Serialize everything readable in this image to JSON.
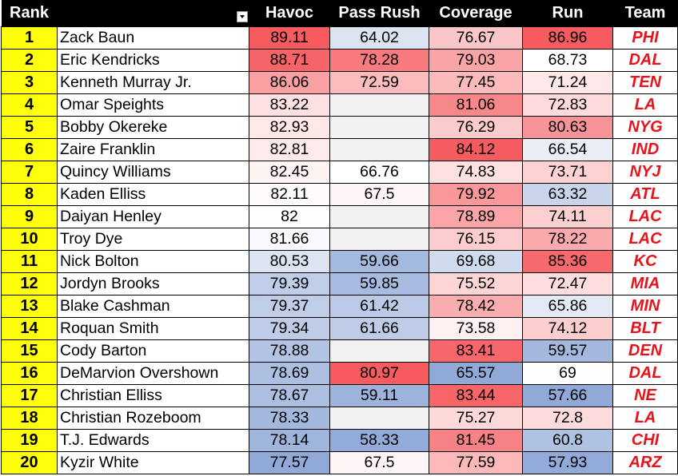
{
  "headers": {
    "rank": "Rank",
    "name": "",
    "havoc": "Havoc",
    "pass_rush": "Pass Rush",
    "coverage": "Coverage",
    "run": "Run",
    "team": "Team"
  },
  "rows": [
    {
      "rank": "1",
      "name": "Zack Baun",
      "havoc": "89.11",
      "pass_rush": "64.02",
      "coverage": "76.67",
      "run": "86.96",
      "team": "PHI"
    },
    {
      "rank": "2",
      "name": "Eric Kendricks",
      "havoc": "88.71",
      "pass_rush": "78.28",
      "coverage": "79.03",
      "run": "68.73",
      "team": "DAL"
    },
    {
      "rank": "3",
      "name": "Kenneth Murray Jr.",
      "havoc": "86.06",
      "pass_rush": "72.59",
      "coverage": "77.45",
      "run": "71.24",
      "team": "TEN"
    },
    {
      "rank": "4",
      "name": "Omar Speights",
      "havoc": "83.22",
      "pass_rush": "",
      "coverage": "81.06",
      "run": "72.83",
      "team": "LA"
    },
    {
      "rank": "5",
      "name": "Bobby Okereke",
      "havoc": "82.93",
      "pass_rush": "",
      "coverage": "76.29",
      "run": "80.63",
      "team": "NYG"
    },
    {
      "rank": "6",
      "name": "Zaire Franklin",
      "havoc": "82.81",
      "pass_rush": "",
      "coverage": "84.12",
      "run": "66.54",
      "team": "IND"
    },
    {
      "rank": "7",
      "name": "Quincy Williams",
      "havoc": "82.45",
      "pass_rush": "66.76",
      "coverage": "74.83",
      "run": "73.71",
      "team": "NYJ"
    },
    {
      "rank": "8",
      "name": "Kaden Elliss",
      "havoc": "82.11",
      "pass_rush": "67.5",
      "coverage": "79.92",
      "run": "63.32",
      "team": "ATL"
    },
    {
      "rank": "9",
      "name": "Daiyan Henley",
      "havoc": "82",
      "pass_rush": "",
      "coverage": "78.89",
      "run": "74.11",
      "team": "LAC"
    },
    {
      "rank": "10",
      "name": "Troy Dye",
      "havoc": "81.66",
      "pass_rush": "",
      "coverage": "76.15",
      "run": "78.22",
      "team": "LAC"
    },
    {
      "rank": "11",
      "name": "Nick Bolton",
      "havoc": "80.53",
      "pass_rush": "59.66",
      "coverage": "69.68",
      "run": "85.36",
      "team": "KC"
    },
    {
      "rank": "12",
      "name": "Jordyn Brooks",
      "havoc": "79.39",
      "pass_rush": "59.85",
      "coverage": "75.52",
      "run": "72.47",
      "team": "MIA"
    },
    {
      "rank": "13",
      "name": "Blake Cashman",
      "havoc": "79.37",
      "pass_rush": "61.42",
      "coverage": "78.42",
      "run": "65.86",
      "team": "MIN"
    },
    {
      "rank": "14",
      "name": "Roquan Smith",
      "havoc": "79.34",
      "pass_rush": "61.66",
      "coverage": "73.58",
      "run": "74.12",
      "team": "BLT"
    },
    {
      "rank": "15",
      "name": "Cody Barton",
      "havoc": "78.88",
      "pass_rush": "",
      "coverage": "83.41",
      "run": "59.57",
      "team": "DEN"
    },
    {
      "rank": "16",
      "name": "DeMarvion Overshown",
      "havoc": "78.69",
      "pass_rush": "80.97",
      "coverage": "65.57",
      "run": "69",
      "team": "DAL"
    },
    {
      "rank": "17",
      "name": "Christian Elliss",
      "havoc": "78.67",
      "pass_rush": "59.11",
      "coverage": "83.44",
      "run": "57.66",
      "team": "NE"
    },
    {
      "rank": "18",
      "name": "Christian Rozeboom",
      "havoc": "78.33",
      "pass_rush": "",
      "coverage": "75.27",
      "run": "72.8",
      "team": "LA"
    },
    {
      "rank": "19",
      "name": "T.J. Edwards",
      "havoc": "78.14",
      "pass_rush": "58.33",
      "coverage": "81.45",
      "run": "60.8",
      "team": "CHI"
    },
    {
      "rank": "20",
      "name": "Kyzir White",
      "havoc": "77.57",
      "pass_rush": "67.5",
      "coverage": "77.59",
      "run": "57.93",
      "team": "ARZ"
    }
  ],
  "colors": {
    "rank_bg": "#ffff0c",
    "team_text": "#e8121b",
    "header_bg": "#000000",
    "header_text": "#ffffff",
    "scale_low": "#8fa8d6",
    "scale_mid": "#ffffff",
    "scale_high": "#f55b5f"
  },
  "icons": {
    "filter": "filter-dropdown-icon"
  }
}
